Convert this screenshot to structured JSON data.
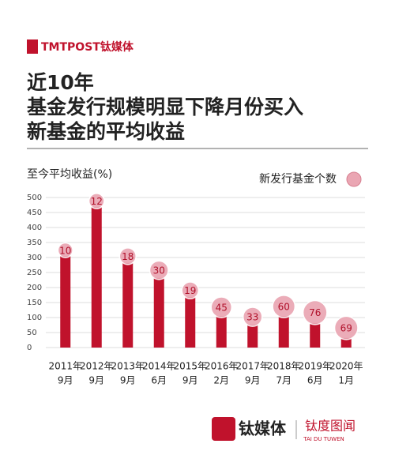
{
  "logo": "TMTPOST钛媒体",
  "footer": {
    "brand": "钛媒体",
    "sub": "钛度图闻",
    "sub_en": "TAI DU TUWEN"
  },
  "chart_data": {
    "type": "bar",
    "title": [
      "近10年",
      "基金发行规模明显下降月份买入",
      "新基金的平均收益"
    ],
    "ylabel": "至今平均收益(%)",
    "categories": [
      [
        "2011年",
        "9月"
      ],
      [
        "2012年",
        "9月"
      ],
      [
        "2013年",
        "9月"
      ],
      [
        "2014年",
        "6月"
      ],
      [
        "2015年",
        "9月"
      ],
      [
        "2016年",
        "2月"
      ],
      [
        "2017年",
        "9月"
      ],
      [
        "2018年",
        "7月"
      ],
      [
        "2019年",
        "6月"
      ],
      [
        "2020年",
        "1月"
      ]
    ],
    "values": [
      305,
      468,
      282,
      232,
      168,
      105,
      76,
      105,
      82,
      32
    ],
    "color": "#c0122c",
    "bubble": {
      "name": "新发行基金个数",
      "color": "#eaa6b3",
      "values": [
        10,
        12,
        18,
        30,
        19,
        45,
        33,
        60,
        76,
        69
      ]
    },
    "ylim": [
      0,
      500
    ],
    "yticks": [
      0,
      50,
      100,
      150,
      200,
      250,
      300,
      350,
      400,
      450,
      500
    ],
    "grid": true
  }
}
